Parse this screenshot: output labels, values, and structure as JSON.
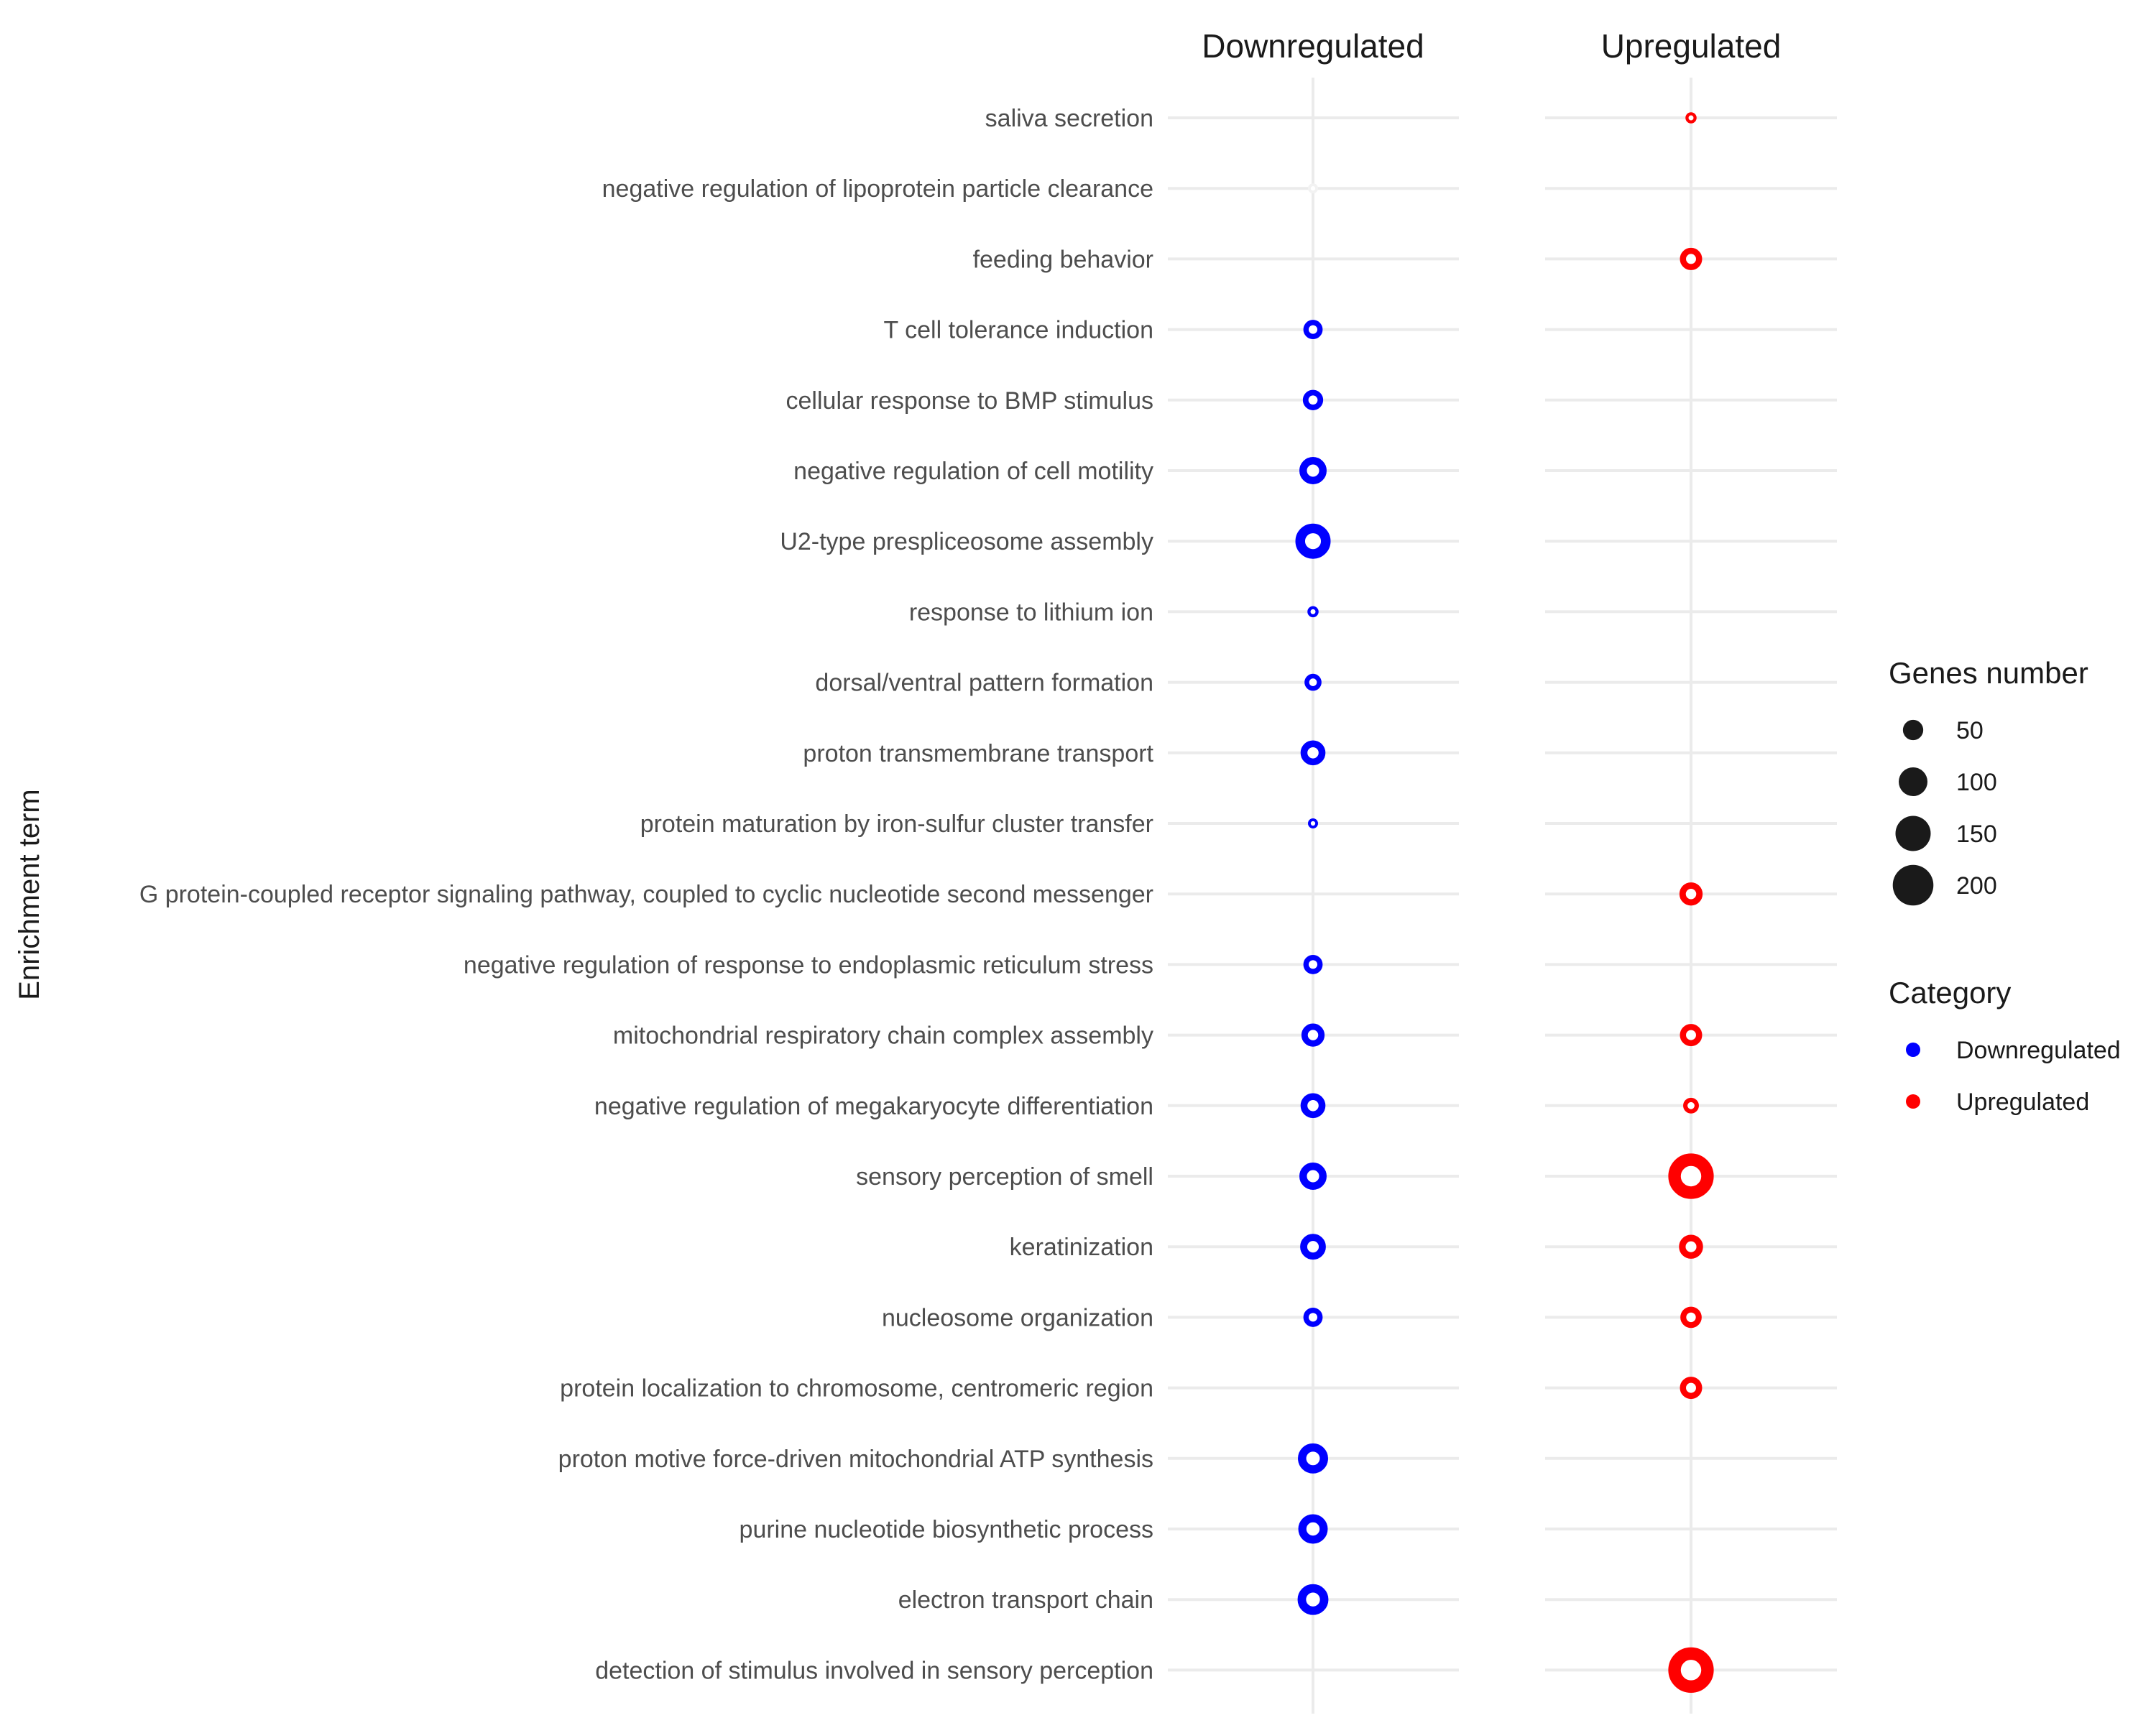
{
  "chart_data": {
    "type": "scatter",
    "ylabel": "Enrichment term",
    "panels": [
      "Downregulated",
      "Upregulated"
    ],
    "terms": [
      "saliva secretion",
      "negative regulation of lipoprotein particle clearance",
      "feeding behavior",
      "T cell tolerance induction",
      "cellular response to BMP stimulus",
      "negative regulation of cell motility",
      "U2-type prespliceosome assembly",
      "response to lithium ion",
      "dorsal/ventral pattern formation",
      "proton transmembrane transport",
      "protein maturation by iron-sulfur cluster transfer",
      "G protein-coupled receptor signaling pathway, coupled to cyclic nucleotide second messenger",
      "negative regulation of response to endoplasmic reticulum stress",
      "mitochondrial respiratory chain complex assembly",
      "negative regulation of megakaryocyte differentiation",
      "sensory perception of smell",
      "keratinization",
      "nucleosome organization",
      "protein localization to chromosome, centromeric region",
      "proton motive force-driven mitochondrial ATP synthesis",
      "purine nucleotide biosynthetic process",
      "electron transport chain",
      "detection of stimulus involved in sensory perception"
    ],
    "series": [
      {
        "name": "Downregulated",
        "color": "#0000ff",
        "points": [
          {
            "term": "negative regulation of lipoprotein particle clearance",
            "genes": 5,
            "faint": true
          },
          {
            "term": "T cell tolerance induction",
            "genes": 45
          },
          {
            "term": "cellular response to BMP stimulus",
            "genes": 50
          },
          {
            "term": "negative regulation of cell motility",
            "genes": 90
          },
          {
            "term": "U2-type prespliceosome assembly",
            "genes": 150
          },
          {
            "term": "response to lithium ion",
            "genes": 15
          },
          {
            "term": "dorsal/ventral pattern formation",
            "genes": 35
          },
          {
            "term": "proton transmembrane transport",
            "genes": 75
          },
          {
            "term": "protein maturation by iron-sulfur cluster transfer",
            "genes": 12
          },
          {
            "term": "negative regulation of response to endoplasmic reticulum stress",
            "genes": 45
          },
          {
            "term": "mitochondrial respiratory chain complex assembly",
            "genes": 65
          },
          {
            "term": "negative regulation of megakaryocyte differentiation",
            "genes": 75
          },
          {
            "term": "sensory perception of smell",
            "genes": 90
          },
          {
            "term": "keratinization",
            "genes": 80
          },
          {
            "term": "nucleosome organization",
            "genes": 45
          },
          {
            "term": "proton motive force-driven mitochondrial ATP synthesis",
            "genes": 110
          },
          {
            "term": "purine nucleotide biosynthetic process",
            "genes": 105
          },
          {
            "term": "electron transport chain",
            "genes": 115
          }
        ]
      },
      {
        "name": "Upregulated",
        "color": "#ff0000",
        "points": [
          {
            "term": "saliva secretion",
            "genes": 15
          },
          {
            "term": "feeding behavior",
            "genes": 60
          },
          {
            "term": "G protein-coupled receptor signaling pathway, coupled to cyclic nucleotide second messenger",
            "genes": 65
          },
          {
            "term": "mitochondrial respiratory chain complex assembly",
            "genes": 60
          },
          {
            "term": "negative regulation of megakaryocyte differentiation",
            "genes": 30
          },
          {
            "term": "sensory perception of smell",
            "genes": 250
          },
          {
            "term": "keratinization",
            "genes": 70
          },
          {
            "term": "nucleosome organization",
            "genes": 55
          },
          {
            "term": "protein localization to chromosome, centromeric region",
            "genes": 60
          },
          {
            "term": "detection of stimulus involved in sensory perception",
            "genes": 250
          }
        ]
      }
    ],
    "size_legend": {
      "title": "Genes number",
      "values": [
        50,
        100,
        150,
        200
      ],
      "labels": [
        "50",
        "100",
        "150",
        "200"
      ]
    },
    "color_legend": {
      "title": "Category",
      "items": [
        {
          "label": "Downregulated",
          "color": "#0000ff"
        },
        {
          "label": "Upregulated",
          "color": "#ff0000"
        }
      ]
    },
    "grid": true,
    "legend_position": "right"
  }
}
